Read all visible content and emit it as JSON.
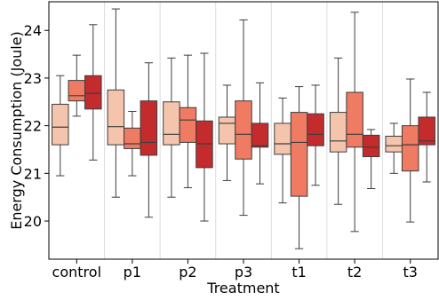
{
  "chart_data": {
    "type": "box",
    "xlabel": "Treatment",
    "ylabel": "Energy Consumption (Joule)",
    "ylim": [
      19.2,
      24.6
    ],
    "yticks": [
      20,
      21,
      22,
      23,
      24
    ],
    "grid": "vertical separators between groups",
    "categories": [
      "control",
      "p1",
      "p2",
      "p3",
      "t1",
      "t2",
      "t3"
    ],
    "series": [
      {
        "color": "#f5c4ad",
        "boxes": [
          {
            "whisker_low": 20.95,
            "q1": 21.6,
            "median": 21.97,
            "q3": 22.45,
            "whisker_high": 23.05
          },
          {
            "whisker_low": 20.5,
            "q1": 21.6,
            "median": 21.98,
            "q3": 22.75,
            "whisker_high": 24.45
          },
          {
            "whisker_low": 20.5,
            "q1": 21.6,
            "median": 21.82,
            "q3": 22.5,
            "whisker_high": 23.42
          },
          {
            "whisker_low": 20.85,
            "q1": 21.62,
            "median": 22.05,
            "q3": 22.18,
            "whisker_high": 22.85
          },
          {
            "whisker_low": 20.38,
            "q1": 21.4,
            "median": 21.62,
            "q3": 22.05,
            "whisker_high": 22.58
          },
          {
            "whisker_low": 20.35,
            "q1": 21.45,
            "median": 21.68,
            "q3": 22.28,
            "whisker_high": 23.42
          },
          {
            "whisker_low": 21.0,
            "q1": 21.45,
            "median": 21.58,
            "q3": 21.78,
            "whisker_high": 22.05
          }
        ]
      },
      {
        "color": "#ee7b62",
        "boxes": [
          {
            "whisker_low": 22.2,
            "q1": 22.52,
            "median": 22.63,
            "q3": 22.95,
            "whisker_high": 23.48
          },
          {
            "whisker_low": 20.95,
            "q1": 21.52,
            "median": 21.62,
            "q3": 21.95,
            "whisker_high": 22.3
          },
          {
            "whisker_low": 20.7,
            "q1": 21.65,
            "median": 22.12,
            "q3": 22.38,
            "whisker_high": 23.48
          },
          {
            "whisker_low": 20.12,
            "q1": 21.3,
            "median": 21.82,
            "q3": 22.52,
            "whisker_high": 24.22
          },
          {
            "whisker_low": 19.42,
            "q1": 20.52,
            "median": 21.65,
            "q3": 22.28,
            "whisker_high": 22.82
          },
          {
            "whisker_low": 19.78,
            "q1": 21.55,
            "median": 21.82,
            "q3": 22.7,
            "whisker_high": 24.38
          },
          {
            "whisker_low": 19.98,
            "q1": 21.05,
            "median": 21.6,
            "q3": 22.0,
            "whisker_high": 22.98
          }
        ]
      },
      {
        "color": "#c32b2d",
        "boxes": [
          {
            "whisker_low": 21.28,
            "q1": 22.35,
            "median": 22.68,
            "q3": 23.05,
            "whisker_high": 24.12
          },
          {
            "whisker_low": 20.08,
            "q1": 21.38,
            "median": 21.65,
            "q3": 22.52,
            "whisker_high": 23.32
          },
          {
            "whisker_low": 20.0,
            "q1": 21.12,
            "median": 21.62,
            "q3": 22.1,
            "whisker_high": 23.52
          },
          {
            "whisker_low": 20.78,
            "q1": 21.55,
            "median": 21.58,
            "q3": 22.05,
            "whisker_high": 22.9
          },
          {
            "whisker_low": 20.75,
            "q1": 21.58,
            "median": 21.82,
            "q3": 22.25,
            "whisker_high": 22.85
          },
          {
            "whisker_low": 20.68,
            "q1": 21.35,
            "median": 21.55,
            "q3": 21.8,
            "whisker_high": 21.92
          },
          {
            "whisker_low": 20.82,
            "q1": 21.6,
            "median": 21.68,
            "q3": 22.18,
            "whisker_high": 22.7
          }
        ]
      }
    ]
  }
}
